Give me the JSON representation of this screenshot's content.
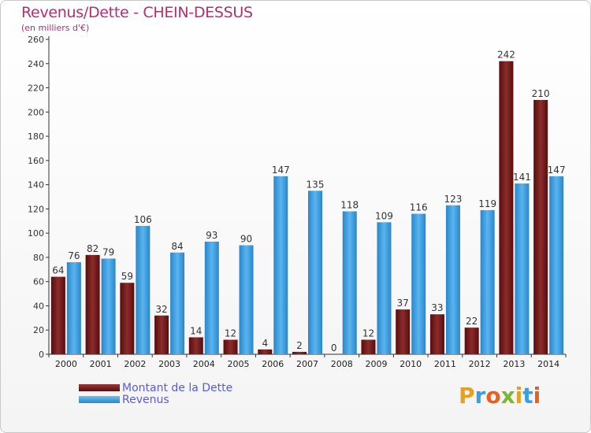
{
  "title": "Revenus/Dette - CHEIN-DESSUS",
  "subtitle": "(en milliers d'€)",
  "logo": "Proxiti",
  "colors": {
    "dette": "#7a1f1f",
    "revenus": "#3a9ee0",
    "title": "#b03070",
    "legend_text": "#5a5ae0"
  },
  "legend": [
    {
      "label": "Montant de la Dette",
      "color": "#7a1f1f"
    },
    {
      "label": "Revenus",
      "color": "#3a9ee0"
    }
  ],
  "chart_data": {
    "type": "bar",
    "categories": [
      "2000",
      "2001",
      "2002",
      "2003",
      "2004",
      "2005",
      "2006",
      "2007",
      "2008",
      "2009",
      "2010",
      "2011",
      "2012",
      "2013",
      "2014"
    ],
    "series": [
      {
        "name": "Montant de la Dette",
        "values": [
          64,
          82,
          59,
          32,
          14,
          12,
          4,
          2,
          0,
          12,
          37,
          33,
          22,
          242,
          210
        ]
      },
      {
        "name": "Revenus",
        "values": [
          76,
          79,
          106,
          84,
          93,
          90,
          147,
          135,
          118,
          109,
          116,
          123,
          119,
          141,
          147
        ]
      }
    ],
    "ylim": [
      0,
      260
    ],
    "yticks": [
      0,
      20,
      40,
      60,
      80,
      100,
      120,
      140,
      160,
      180,
      200,
      220,
      240,
      260
    ],
    "grid": false,
    "legend_position": "bottom-left"
  }
}
